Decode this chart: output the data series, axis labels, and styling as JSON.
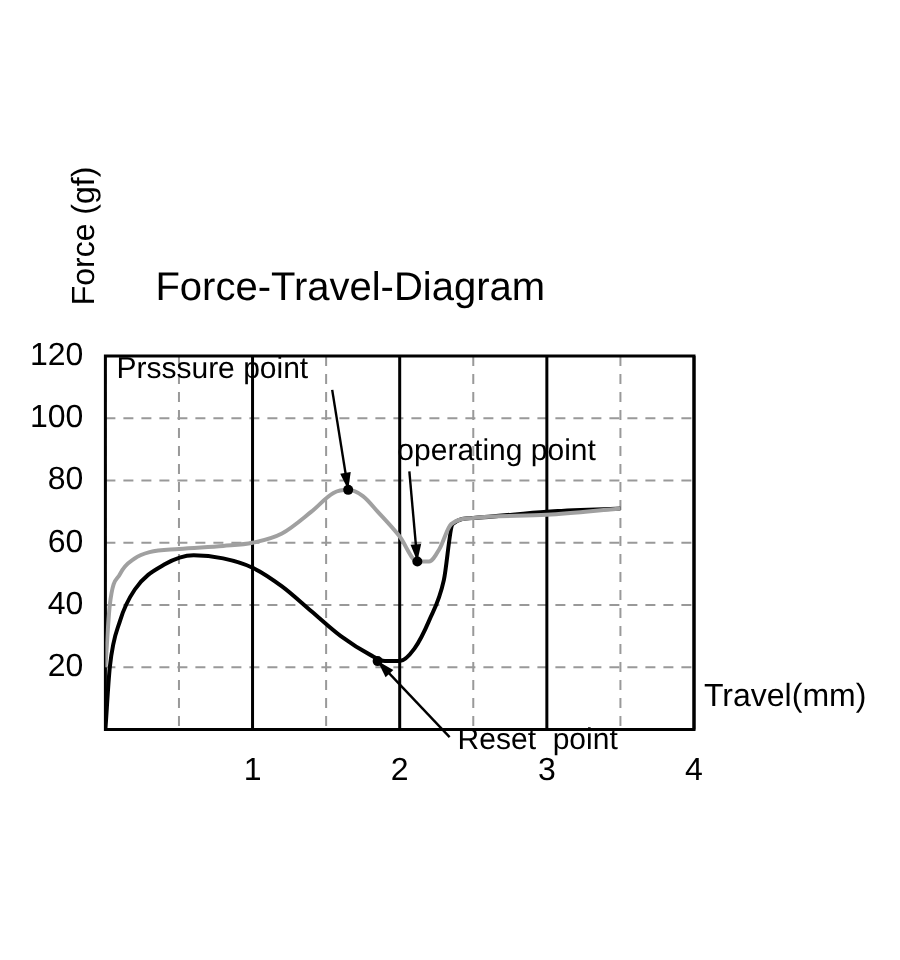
{
  "chart_data": {
    "type": "line",
    "title": "Force-Travel-Diagram",
    "xlabel": "Travel(mm)",
    "ylabel": "Force (gf)",
    "xlim": [
      0,
      4
    ],
    "ylim": [
      0,
      120
    ],
    "xticks": [
      {
        "value": 0,
        "label": null
      },
      {
        "value": 0.5,
        "label": null
      },
      1,
      {
        "value": 1.5,
        "label": null
      },
      2,
      {
        "value": 2.5,
        "label": null
      },
      3,
      {
        "value": 3.5,
        "label": null
      },
      4
    ],
    "yticks": [
      {
        "value": 0,
        "label": null
      },
      20,
      40,
      60,
      80,
      100,
      120
    ],
    "grid": true,
    "line_style": "solid",
    "marker": "none",
    "series": [
      {
        "color": "#a0a0a0",
        "x": [
          0,
          0.03,
          0.1,
          0.2,
          0.3,
          0.5,
          0.8,
          1.0,
          1.2,
          1.4,
          1.55,
          1.65,
          1.75,
          1.85,
          2.0,
          2.12,
          2.2,
          2.27,
          2.35,
          2.5,
          3.0,
          3.5
        ],
        "values": [
          20,
          40,
          50,
          55,
          57,
          58,
          59,
          60,
          63,
          70,
          76,
          77,
          75,
          70,
          62,
          54,
          54,
          58,
          66,
          68,
          69,
          71
        ]
      },
      {
        "color": "#000000",
        "x": [
          0,
          0.03,
          0.1,
          0.2,
          0.4,
          0.6,
          0.8,
          1.0,
          1.2,
          1.4,
          1.6,
          1.8,
          1.9,
          2.0,
          2.1,
          2.2,
          2.3,
          2.36,
          2.5,
          3.0,
          3.5
        ],
        "values": [
          0,
          20,
          35,
          45,
          53,
          56,
          55,
          52,
          46,
          38,
          30,
          24,
          22,
          22,
          26,
          35,
          48,
          66,
          68,
          70,
          71
        ]
      }
    ],
    "annotations": [
      {
        "text": "Prsssure point",
        "x": 1.65,
        "y": 77
      },
      {
        "text": "operating point",
        "x": 2.12,
        "y": 54
      },
      {
        "text": "Reset  point",
        "x": 1.85,
        "y": 22
      }
    ]
  }
}
